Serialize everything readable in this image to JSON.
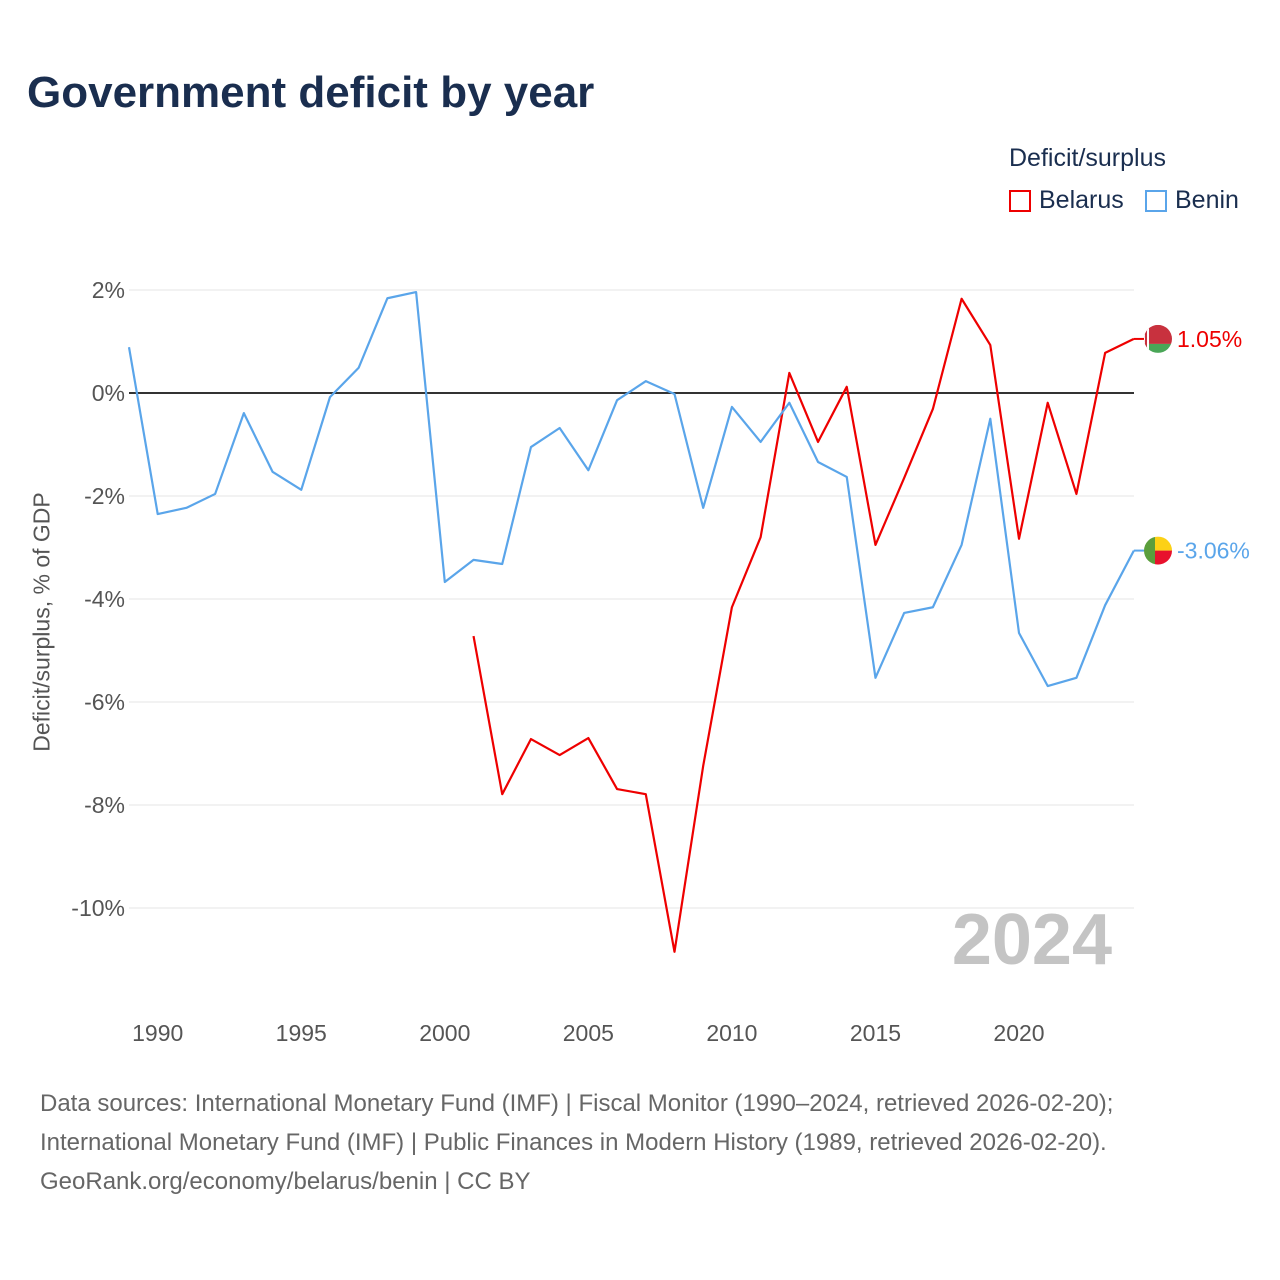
{
  "chart_data": {
    "type": "line",
    "title": "Government deficit by year",
    "xlabel": "",
    "ylabel": "Deficit/surplus, % of GDP",
    "legend_title": "Deficit/surplus",
    "legend_placement": "top-right",
    "xlim": [
      1989,
      2024
    ],
    "ylim": [
      -11.5,
      2.5
    ],
    "x_ticks": [
      1990,
      1995,
      2000,
      2005,
      2010,
      2015,
      2020
    ],
    "y_ticks": [
      2,
      0,
      -2,
      -4,
      -6,
      -8,
      -10
    ],
    "y_tick_labels": [
      "2%",
      "0%",
      "-2%",
      "-4%",
      "-6%",
      "-8%",
      "-10%"
    ],
    "year_watermark": "2024",
    "grid": true,
    "series": [
      {
        "name": "Belarus",
        "color": "#ee0000",
        "end_label": "1.05%",
        "x": [
          2001,
          2002,
          2003,
          2004,
          2005,
          2006,
          2007,
          2008,
          2009,
          2010,
          2011,
          2012,
          2013,
          2014,
          2015,
          2016,
          2017,
          2018,
          2019,
          2020,
          2021,
          2022,
          2023,
          2024
        ],
        "values": [
          -4.72,
          -7.79,
          -6.72,
          -7.03,
          -6.7,
          -7.69,
          -7.79,
          -10.85,
          -7.24,
          -4.16,
          -2.8,
          0.39,
          -0.95,
          0.12,
          -2.95,
          -1.65,
          -0.31,
          1.83,
          0.93,
          -2.83,
          -0.19,
          -1.96,
          0.78,
          1.05
        ]
      },
      {
        "name": "Benin",
        "color": "#5aa5ea",
        "end_label": "-3.06%",
        "x": [
          1989,
          1990,
          1991,
          1992,
          1993,
          1994,
          1995,
          1996,
          1997,
          1998,
          1999,
          2000,
          2001,
          2002,
          2003,
          2004,
          2005,
          2006,
          2007,
          2008,
          2009,
          2010,
          2011,
          2012,
          2013,
          2014,
          2015,
          2016,
          2017,
          2018,
          2019,
          2020,
          2021,
          2022,
          2023,
          2024
        ],
        "values": [
          0.89,
          -2.35,
          -2.23,
          -1.96,
          -0.39,
          -1.53,
          -1.88,
          -0.08,
          0.49,
          1.84,
          1.96,
          -3.67,
          -3.24,
          -3.32,
          -1.05,
          -0.68,
          -1.5,
          -0.14,
          0.23,
          -0.02,
          -2.23,
          -0.27,
          -0.95,
          -0.19,
          -1.34,
          -1.63,
          -5.53,
          -4.27,
          -4.16,
          -2.95,
          -0.5,
          -4.66,
          -5.69,
          -5.53,
          -4.12,
          -3.06
        ]
      }
    ]
  },
  "footer": {
    "line1": "Data sources: International Monetary Fund (IMF) | Fiscal Monitor (1990–2024, retrieved 2026-02-20);",
    "line2": "International Monetary Fund (IMF) | Public Finances in Modern History (1989, retrieved 2026-02-20).",
    "line3": "GeoRank.org/economy/belarus/benin | CC BY"
  }
}
